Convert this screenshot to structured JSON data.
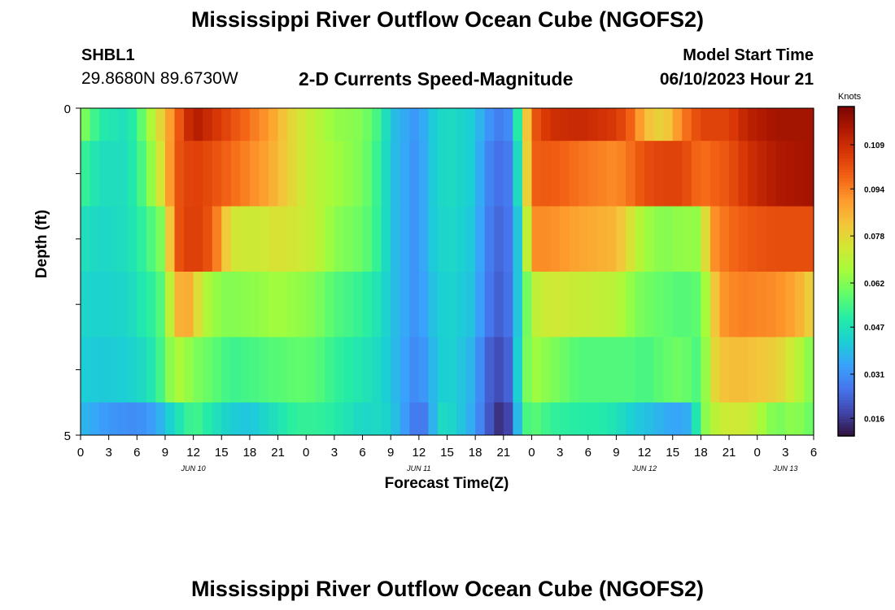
{
  "header": {
    "title": "Mississippi River Outflow Ocean Cube (NGOFS2)",
    "station_id": "SHBL1",
    "coords": "29.8680N  89.6730W",
    "subtitle": "2-D Currents Speed-Magnitude",
    "model_start_label": "Model Start Time",
    "model_start_value": "06/10/2023 Hour 21"
  },
  "footer": {
    "title": "Mississippi River Outflow Ocean Cube (NGOFS2)"
  },
  "chart_data": {
    "type": "heatmap",
    "title": "2-D Currents Speed-Magnitude",
    "xlabel": "Forecast Time(Z)",
    "ylabel": "Depth (ft)",
    "y_ticks": [
      "0",
      "5"
    ],
    "ylim": [
      0,
      5
    ],
    "x_tick_labels": [
      "0",
      "3",
      "6",
      "9",
      "12",
      "15",
      "18",
      "21",
      "0",
      "3",
      "6",
      "9",
      "12",
      "15",
      "18",
      "21",
      "0",
      "3",
      "6",
      "9",
      "12",
      "15",
      "18",
      "21",
      "0",
      "3",
      "6"
    ],
    "date_labels": [
      {
        "label": "JUN 10",
        "hour": 12
      },
      {
        "label": "JUN 11",
        "hour": 36
      },
      {
        "label": "JUN 12",
        "hour": 60
      },
      {
        "label": "JUN 13",
        "hour": 75
      }
    ],
    "x_range_hours": [
      0,
      78
    ],
    "colorbar": {
      "unit": "Knots",
      "ticks": [
        "0.109",
        "0.094",
        "0.078",
        "0.062",
        "0.047",
        "0.031",
        "0.016"
      ],
      "min": 0.01,
      "max": 0.122,
      "colors": [
        "#30123b",
        "#4145ab",
        "#4675ed",
        "#39a2fc",
        "#1bcfd4",
        "#24eca6",
        "#61fc6c",
        "#a4fc3b",
        "#d1e834",
        "#f3c63a",
        "#fe9b2d",
        "#f36315",
        "#d93806",
        "#b11901",
        "#7a0402"
      ]
    },
    "grid": false,
    "layers": [
      {
        "depth_range": [
          0,
          0.5
        ],
        "keys": [
          [
            0,
            0.064
          ],
          [
            2,
            0.05
          ],
          [
            5,
            0.046
          ],
          [
            7,
            0.062
          ],
          [
            8,
            0.074
          ],
          [
            9,
            0.083
          ],
          [
            10,
            0.096
          ],
          [
            12,
            0.114
          ],
          [
            14,
            0.108
          ],
          [
            17,
            0.099
          ],
          [
            20,
            0.09
          ],
          [
            23,
            0.076
          ],
          [
            25,
            0.07
          ],
          [
            27,
            0.064
          ],
          [
            30,
            0.062
          ],
          [
            32,
            0.052
          ],
          [
            33,
            0.04
          ],
          [
            36,
            0.031
          ],
          [
            37,
            0.04
          ],
          [
            39,
            0.046
          ],
          [
            42,
            0.041
          ],
          [
            43,
            0.033
          ],
          [
            45,
            0.026
          ],
          [
            46,
            0.034
          ],
          [
            47,
            0.065
          ],
          [
            48,
            0.099
          ],
          [
            50,
            0.108
          ],
          [
            53,
            0.11
          ],
          [
            57,
            0.106
          ],
          [
            59,
            0.096
          ],
          [
            60,
            0.084
          ],
          [
            62,
            0.078
          ],
          [
            64,
            0.094
          ],
          [
            66,
            0.104
          ],
          [
            69,
            0.104
          ],
          [
            71,
            0.112
          ],
          [
            74,
            0.116
          ],
          [
            78,
            0.116
          ]
        ]
      },
      {
        "depth_range": [
          0.5,
          1.5
        ],
        "keys": [
          [
            0,
            0.054
          ],
          [
            2,
            0.046
          ],
          [
            5,
            0.046
          ],
          [
            7,
            0.058
          ],
          [
            8,
            0.07
          ],
          [
            9,
            0.08
          ],
          [
            10,
            0.1
          ],
          [
            12,
            0.105
          ],
          [
            14,
            0.102
          ],
          [
            17,
            0.095
          ],
          [
            20,
            0.088
          ],
          [
            23,
            0.076
          ],
          [
            25,
            0.07
          ],
          [
            27,
            0.066
          ],
          [
            30,
            0.061
          ],
          [
            32,
            0.05
          ],
          [
            33,
            0.04
          ],
          [
            36,
            0.03
          ],
          [
            37,
            0.04
          ],
          [
            39,
            0.046
          ],
          [
            42,
            0.041
          ],
          [
            43,
            0.03
          ],
          [
            45,
            0.024
          ],
          [
            46,
            0.03
          ],
          [
            47,
            0.06
          ],
          [
            48,
            0.099
          ],
          [
            50,
            0.1
          ],
          [
            53,
            0.096
          ],
          [
            57,
            0.092
          ],
          [
            59,
            0.098
          ],
          [
            60,
            0.102
          ],
          [
            62,
            0.104
          ],
          [
            64,
            0.104
          ],
          [
            66,
            0.096
          ],
          [
            69,
            0.101
          ],
          [
            71,
            0.108
          ],
          [
            74,
            0.114
          ],
          [
            78,
            0.116
          ]
        ]
      },
      {
        "depth_range": [
          1.5,
          2.5
        ],
        "keys": [
          [
            0,
            0.047
          ],
          [
            2,
            0.044
          ],
          [
            5,
            0.046
          ],
          [
            7,
            0.053
          ],
          [
            8,
            0.058
          ],
          [
            9,
            0.064
          ],
          [
            10,
            0.1
          ],
          [
            12,
            0.106
          ],
          [
            14,
            0.1
          ],
          [
            15,
            0.088
          ],
          [
            16,
            0.074
          ],
          [
            19,
            0.073
          ],
          [
            21,
            0.076
          ],
          [
            23,
            0.074
          ],
          [
            25,
            0.071
          ],
          [
            27,
            0.063
          ],
          [
            30,
            0.059
          ],
          [
            32,
            0.05
          ],
          [
            33,
            0.04
          ],
          [
            36,
            0.03
          ],
          [
            37,
            0.04
          ],
          [
            39,
            0.045
          ],
          [
            42,
            0.04
          ],
          [
            43,
            0.029
          ],
          [
            45,
            0.022
          ],
          [
            46,
            0.03
          ],
          [
            47,
            0.05
          ],
          [
            48,
            0.092
          ],
          [
            50,
            0.092
          ],
          [
            53,
            0.088
          ],
          [
            57,
            0.085
          ],
          [
            59,
            0.072
          ],
          [
            60,
            0.066
          ],
          [
            62,
            0.062
          ],
          [
            64,
            0.064
          ],
          [
            66,
            0.064
          ],
          [
            67,
            0.09
          ],
          [
            69,
            0.097
          ],
          [
            71,
            0.1
          ],
          [
            74,
            0.102
          ],
          [
            78,
            0.102
          ]
        ]
      },
      {
        "depth_range": [
          2.5,
          3.5
        ],
        "keys": [
          [
            0,
            0.044
          ],
          [
            2,
            0.043
          ],
          [
            5,
            0.044
          ],
          [
            7,
            0.05
          ],
          [
            8,
            0.052
          ],
          [
            9,
            0.06
          ],
          [
            10,
            0.082
          ],
          [
            11,
            0.09
          ],
          [
            12,
            0.083
          ],
          [
            13,
            0.07
          ],
          [
            15,
            0.062
          ],
          [
            18,
            0.063
          ],
          [
            21,
            0.066
          ],
          [
            23,
            0.064
          ],
          [
            25,
            0.062
          ],
          [
            27,
            0.056
          ],
          [
            30,
            0.052
          ],
          [
            32,
            0.046
          ],
          [
            33,
            0.04
          ],
          [
            36,
            0.03
          ],
          [
            37,
            0.038
          ],
          [
            39,
            0.044
          ],
          [
            42,
            0.039
          ],
          [
            43,
            0.028
          ],
          [
            45,
            0.021
          ],
          [
            46,
            0.03
          ],
          [
            47,
            0.05
          ],
          [
            48,
            0.07
          ],
          [
            50,
            0.074
          ],
          [
            53,
            0.072
          ],
          [
            57,
            0.07
          ],
          [
            59,
            0.062
          ],
          [
            60,
            0.06
          ],
          [
            62,
            0.058
          ],
          [
            64,
            0.056
          ],
          [
            66,
            0.058
          ],
          [
            67,
            0.074
          ],
          [
            68,
            0.09
          ],
          [
            70,
            0.094
          ],
          [
            74,
            0.092
          ],
          [
            76,
            0.088
          ],
          [
            78,
            0.078
          ]
        ]
      },
      {
        "depth_range": [
          3.5,
          4.5
        ],
        "keys": [
          [
            0,
            0.042
          ],
          [
            2,
            0.041
          ],
          [
            5,
            0.042
          ],
          [
            7,
            0.046
          ],
          [
            8,
            0.05
          ],
          [
            9,
            0.058
          ],
          [
            10,
            0.068
          ],
          [
            11,
            0.066
          ],
          [
            12,
            0.062
          ],
          [
            14,
            0.058
          ],
          [
            16,
            0.053
          ],
          [
            20,
            0.056
          ],
          [
            23,
            0.058
          ],
          [
            25,
            0.057
          ],
          [
            27,
            0.052
          ],
          [
            30,
            0.048
          ],
          [
            32,
            0.044
          ],
          [
            33,
            0.04
          ],
          [
            36,
            0.028
          ],
          [
            37,
            0.036
          ],
          [
            39,
            0.044
          ],
          [
            42,
            0.036
          ],
          [
            43,
            0.024
          ],
          [
            45,
            0.018
          ],
          [
            46,
            0.028
          ],
          [
            47,
            0.056
          ],
          [
            48,
            0.066
          ],
          [
            50,
            0.062
          ],
          [
            53,
            0.056
          ],
          [
            57,
            0.056
          ],
          [
            59,
            0.056
          ],
          [
            60,
            0.054
          ],
          [
            62,
            0.058
          ],
          [
            64,
            0.06
          ],
          [
            66,
            0.054
          ],
          [
            67,
            0.074
          ],
          [
            68,
            0.082
          ],
          [
            70,
            0.084
          ],
          [
            74,
            0.08
          ],
          [
            76,
            0.072
          ],
          [
            78,
            0.06
          ]
        ]
      },
      {
        "depth_range": [
          4.5,
          5
        ],
        "keys": [
          [
            0,
            0.038
          ],
          [
            3,
            0.032
          ],
          [
            6,
            0.03
          ],
          [
            8,
            0.034
          ],
          [
            9,
            0.04
          ],
          [
            10,
            0.045
          ],
          [
            12,
            0.055
          ],
          [
            14,
            0.048
          ],
          [
            16,
            0.042
          ],
          [
            18,
            0.04
          ],
          [
            20,
            0.045
          ],
          [
            23,
            0.052
          ],
          [
            25,
            0.052
          ],
          [
            27,
            0.05
          ],
          [
            30,
            0.044
          ],
          [
            32,
            0.045
          ],
          [
            33,
            0.042
          ],
          [
            36,
            0.024
          ],
          [
            37,
            0.03
          ],
          [
            38,
            0.044
          ],
          [
            39,
            0.046
          ],
          [
            42,
            0.034
          ],
          [
            43,
            0.024
          ],
          [
            45,
            0.012
          ],
          [
            46,
            0.024
          ],
          [
            47,
            0.052
          ],
          [
            48,
            0.058
          ],
          [
            50,
            0.052
          ],
          [
            53,
            0.05
          ],
          [
            55,
            0.05
          ],
          [
            57,
            0.047
          ],
          [
            59,
            0.041
          ],
          [
            60,
            0.04
          ],
          [
            62,
            0.036
          ],
          [
            64,
            0.034
          ],
          [
            65,
            0.038
          ],
          [
            66,
            0.058
          ],
          [
            67,
            0.068
          ],
          [
            69,
            0.074
          ],
          [
            71,
            0.073
          ],
          [
            74,
            0.06
          ],
          [
            76,
            0.064
          ],
          [
            78,
            0.058
          ]
        ]
      }
    ]
  }
}
